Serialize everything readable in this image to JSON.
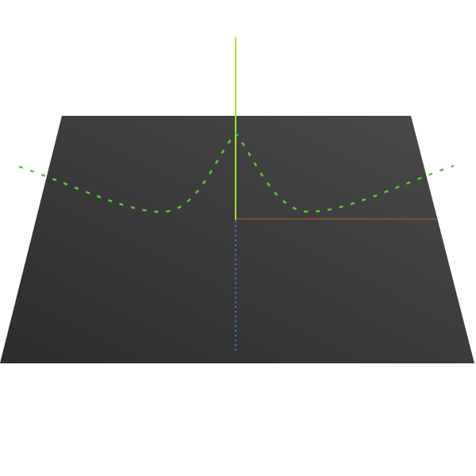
{
  "scene": {
    "background_color": "#ffffff",
    "ground_plane": {
      "color_light": "#4a4a4a",
      "color_dark": "#2c2c2c"
    },
    "axes": {
      "x_axis_color": "#a0622a",
      "y_axis_color": "#a6e22e",
      "z_axis_color": "#3a7bd5"
    },
    "curve": {
      "color": "#5cc83a",
      "style": "dashed"
    }
  }
}
